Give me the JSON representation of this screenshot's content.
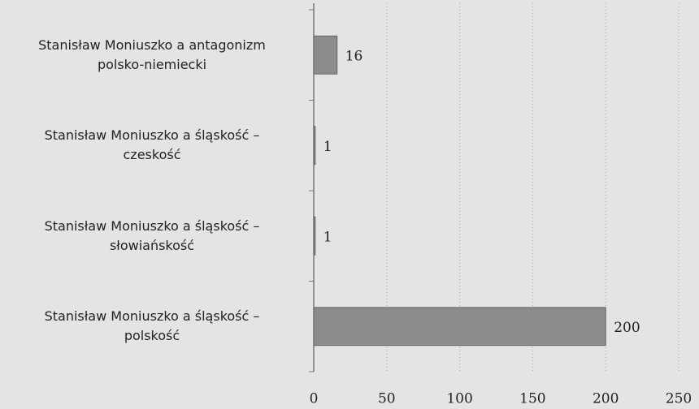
{
  "chart_data": {
    "type": "bar",
    "orientation": "horizontal",
    "categories": [
      "Stanisław Moniuszko a antagonizm\npolsko-niemiecki",
      "Stanisław Moniuszko a śląskość –\nczeskość",
      "Stanisław Moniuszko a śląskość –\nsłowiańskość",
      "Stanisław Moniuszko a śląskość –\npolskość"
    ],
    "values": [
      16,
      1,
      1,
      200
    ],
    "color": "#8c8c8c",
    "xlim": [
      0,
      250
    ],
    "xticks": [
      0,
      50,
      100,
      150,
      200,
      250
    ],
    "grid": true
  }
}
